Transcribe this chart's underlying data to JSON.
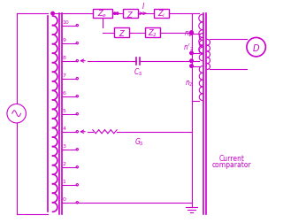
{
  "color": "#CC00CC",
  "bg_color": "#FFFFFF",
  "figsize": [
    3.2,
    2.53
  ],
  "dpi": 100,
  "xlim": [
    0,
    320
  ],
  "ylim": [
    0,
    253
  ]
}
